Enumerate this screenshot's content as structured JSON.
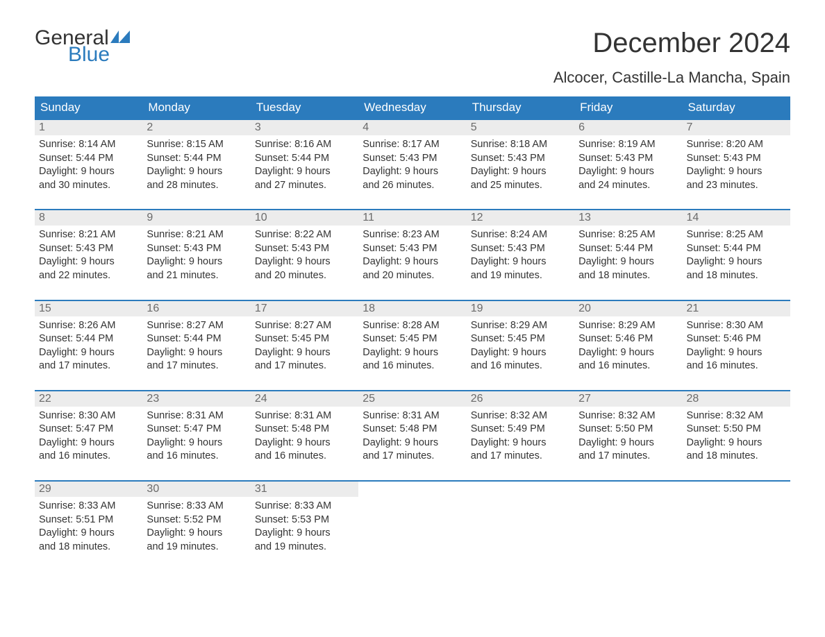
{
  "logo": {
    "line1": "General",
    "line2": "Blue",
    "accent_color": "#2b7bbd"
  },
  "title": "December 2024",
  "location": "Alcocer, Castille-La Mancha, Spain",
  "weekdays": [
    "Sunday",
    "Monday",
    "Tuesday",
    "Wednesday",
    "Thursday",
    "Friday",
    "Saturday"
  ],
  "colors": {
    "header_bg": "#2b7bbd",
    "header_text": "#ffffff",
    "daynum_bg": "#ececec",
    "daynum_text": "#6a6a6a",
    "body_text": "#333333",
    "row_border": "#2b7bbd"
  },
  "weeks": [
    [
      {
        "n": "1",
        "sunrise": "Sunrise: 8:14 AM",
        "sunset": "Sunset: 5:44 PM",
        "d1": "Daylight: 9 hours",
        "d2": "and 30 minutes."
      },
      {
        "n": "2",
        "sunrise": "Sunrise: 8:15 AM",
        "sunset": "Sunset: 5:44 PM",
        "d1": "Daylight: 9 hours",
        "d2": "and 28 minutes."
      },
      {
        "n": "3",
        "sunrise": "Sunrise: 8:16 AM",
        "sunset": "Sunset: 5:44 PM",
        "d1": "Daylight: 9 hours",
        "d2": "and 27 minutes."
      },
      {
        "n": "4",
        "sunrise": "Sunrise: 8:17 AM",
        "sunset": "Sunset: 5:43 PM",
        "d1": "Daylight: 9 hours",
        "d2": "and 26 minutes."
      },
      {
        "n": "5",
        "sunrise": "Sunrise: 8:18 AM",
        "sunset": "Sunset: 5:43 PM",
        "d1": "Daylight: 9 hours",
        "d2": "and 25 minutes."
      },
      {
        "n": "6",
        "sunrise": "Sunrise: 8:19 AM",
        "sunset": "Sunset: 5:43 PM",
        "d1": "Daylight: 9 hours",
        "d2": "and 24 minutes."
      },
      {
        "n": "7",
        "sunrise": "Sunrise: 8:20 AM",
        "sunset": "Sunset: 5:43 PM",
        "d1": "Daylight: 9 hours",
        "d2": "and 23 minutes."
      }
    ],
    [
      {
        "n": "8",
        "sunrise": "Sunrise: 8:21 AM",
        "sunset": "Sunset: 5:43 PM",
        "d1": "Daylight: 9 hours",
        "d2": "and 22 minutes."
      },
      {
        "n": "9",
        "sunrise": "Sunrise: 8:21 AM",
        "sunset": "Sunset: 5:43 PM",
        "d1": "Daylight: 9 hours",
        "d2": "and 21 minutes."
      },
      {
        "n": "10",
        "sunrise": "Sunrise: 8:22 AM",
        "sunset": "Sunset: 5:43 PM",
        "d1": "Daylight: 9 hours",
        "d2": "and 20 minutes."
      },
      {
        "n": "11",
        "sunrise": "Sunrise: 8:23 AM",
        "sunset": "Sunset: 5:43 PM",
        "d1": "Daylight: 9 hours",
        "d2": "and 20 minutes."
      },
      {
        "n": "12",
        "sunrise": "Sunrise: 8:24 AM",
        "sunset": "Sunset: 5:43 PM",
        "d1": "Daylight: 9 hours",
        "d2": "and 19 minutes."
      },
      {
        "n": "13",
        "sunrise": "Sunrise: 8:25 AM",
        "sunset": "Sunset: 5:44 PM",
        "d1": "Daylight: 9 hours",
        "d2": "and 18 minutes."
      },
      {
        "n": "14",
        "sunrise": "Sunrise: 8:25 AM",
        "sunset": "Sunset: 5:44 PM",
        "d1": "Daylight: 9 hours",
        "d2": "and 18 minutes."
      }
    ],
    [
      {
        "n": "15",
        "sunrise": "Sunrise: 8:26 AM",
        "sunset": "Sunset: 5:44 PM",
        "d1": "Daylight: 9 hours",
        "d2": "and 17 minutes."
      },
      {
        "n": "16",
        "sunrise": "Sunrise: 8:27 AM",
        "sunset": "Sunset: 5:44 PM",
        "d1": "Daylight: 9 hours",
        "d2": "and 17 minutes."
      },
      {
        "n": "17",
        "sunrise": "Sunrise: 8:27 AM",
        "sunset": "Sunset: 5:45 PM",
        "d1": "Daylight: 9 hours",
        "d2": "and 17 minutes."
      },
      {
        "n": "18",
        "sunrise": "Sunrise: 8:28 AM",
        "sunset": "Sunset: 5:45 PM",
        "d1": "Daylight: 9 hours",
        "d2": "and 16 minutes."
      },
      {
        "n": "19",
        "sunrise": "Sunrise: 8:29 AM",
        "sunset": "Sunset: 5:45 PM",
        "d1": "Daylight: 9 hours",
        "d2": "and 16 minutes."
      },
      {
        "n": "20",
        "sunrise": "Sunrise: 8:29 AM",
        "sunset": "Sunset: 5:46 PM",
        "d1": "Daylight: 9 hours",
        "d2": "and 16 minutes."
      },
      {
        "n": "21",
        "sunrise": "Sunrise: 8:30 AM",
        "sunset": "Sunset: 5:46 PM",
        "d1": "Daylight: 9 hours",
        "d2": "and 16 minutes."
      }
    ],
    [
      {
        "n": "22",
        "sunrise": "Sunrise: 8:30 AM",
        "sunset": "Sunset: 5:47 PM",
        "d1": "Daylight: 9 hours",
        "d2": "and 16 minutes."
      },
      {
        "n": "23",
        "sunrise": "Sunrise: 8:31 AM",
        "sunset": "Sunset: 5:47 PM",
        "d1": "Daylight: 9 hours",
        "d2": "and 16 minutes."
      },
      {
        "n": "24",
        "sunrise": "Sunrise: 8:31 AM",
        "sunset": "Sunset: 5:48 PM",
        "d1": "Daylight: 9 hours",
        "d2": "and 16 minutes."
      },
      {
        "n": "25",
        "sunrise": "Sunrise: 8:31 AM",
        "sunset": "Sunset: 5:48 PM",
        "d1": "Daylight: 9 hours",
        "d2": "and 17 minutes."
      },
      {
        "n": "26",
        "sunrise": "Sunrise: 8:32 AM",
        "sunset": "Sunset: 5:49 PM",
        "d1": "Daylight: 9 hours",
        "d2": "and 17 minutes."
      },
      {
        "n": "27",
        "sunrise": "Sunrise: 8:32 AM",
        "sunset": "Sunset: 5:50 PM",
        "d1": "Daylight: 9 hours",
        "d2": "and 17 minutes."
      },
      {
        "n": "28",
        "sunrise": "Sunrise: 8:32 AM",
        "sunset": "Sunset: 5:50 PM",
        "d1": "Daylight: 9 hours",
        "d2": "and 18 minutes."
      }
    ],
    [
      {
        "n": "29",
        "sunrise": "Sunrise: 8:33 AM",
        "sunset": "Sunset: 5:51 PM",
        "d1": "Daylight: 9 hours",
        "d2": "and 18 minutes."
      },
      {
        "n": "30",
        "sunrise": "Sunrise: 8:33 AM",
        "sunset": "Sunset: 5:52 PM",
        "d1": "Daylight: 9 hours",
        "d2": "and 19 minutes."
      },
      {
        "n": "31",
        "sunrise": "Sunrise: 8:33 AM",
        "sunset": "Sunset: 5:53 PM",
        "d1": "Daylight: 9 hours",
        "d2": "and 19 minutes."
      },
      {
        "empty": true
      },
      {
        "empty": true
      },
      {
        "empty": true
      },
      {
        "empty": true
      }
    ]
  ]
}
